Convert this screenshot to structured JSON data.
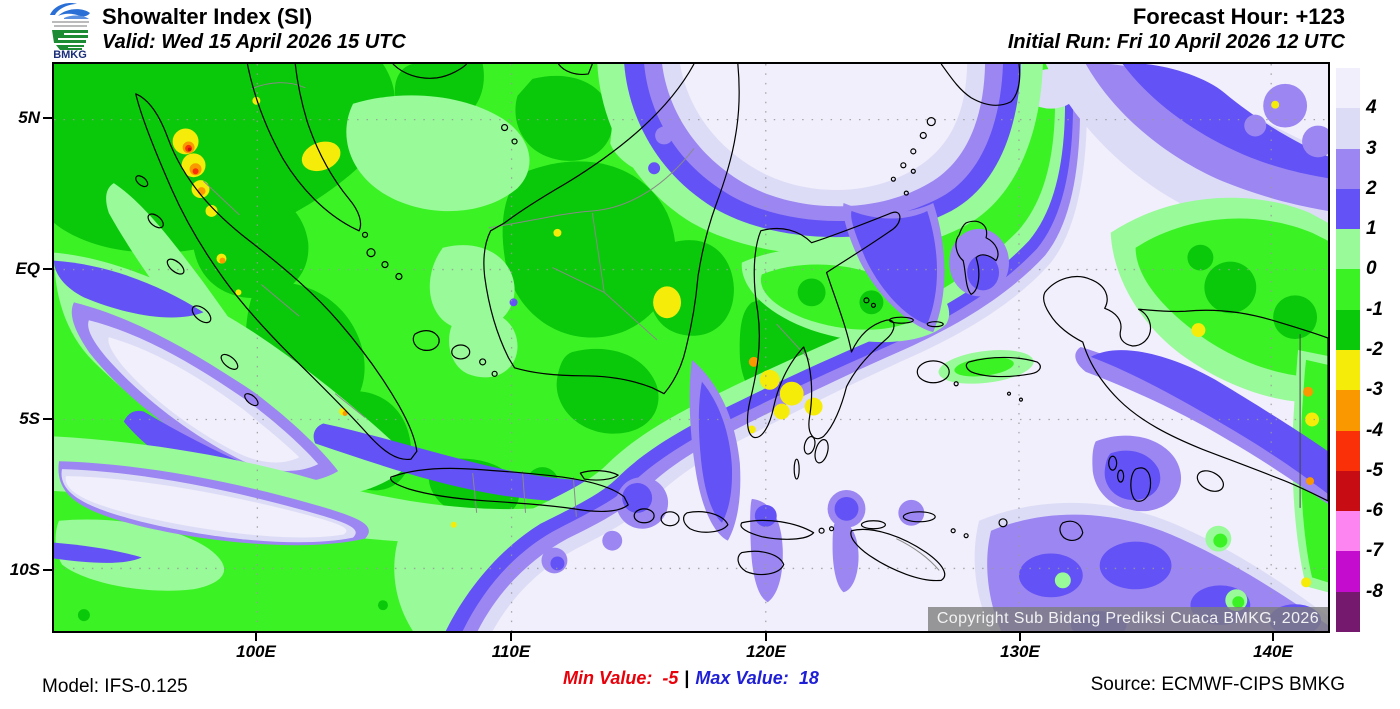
{
  "header": {
    "logo_text": "BMKG",
    "title": "Showalter Index (SI)",
    "valid_line": "Valid: Wed 15 April 2026 15 UTC",
    "forecast_hour_line": "Forecast Hour: +123",
    "initial_run_line": "Initial Run: Fri 10 April 2026 12 UTC"
  },
  "map": {
    "copyright_text": "Copyright Sub Bidang Prediksi Cuaca BMKG, 2026",
    "y_axis_labels": [
      "5N",
      "EQ",
      "5S",
      "10S"
    ],
    "x_axis_labels": [
      "100E",
      "110E",
      "120E",
      "130E",
      "140E"
    ]
  },
  "colorbar": {
    "tick_labels": [
      "4",
      "3",
      "2",
      "1",
      "0",
      "-1",
      "-2",
      "-3",
      "-4",
      "-5",
      "-6",
      "-7",
      "-8"
    ],
    "segment_colors": [
      "#f1effb",
      "#dcdcf7",
      "#9c86f2",
      "#6352f5",
      "#98fa98",
      "#3bf225",
      "#0ac80a",
      "#f6ec0a",
      "#fa9800",
      "#f93008",
      "#c80c14",
      "#fd85f2",
      "#c40cce",
      "#75196e"
    ]
  },
  "footer": {
    "model_label": "Model: IFS-0.125",
    "min_label": "Min Value:",
    "min_value": "-5",
    "separator": "|",
    "max_label": "Max Value:",
    "max_value": "18",
    "source_label": "Source: ECMWF-CIPS BMKG",
    "min_color": "#e8000a",
    "max_color": "#1f1fd6"
  }
}
